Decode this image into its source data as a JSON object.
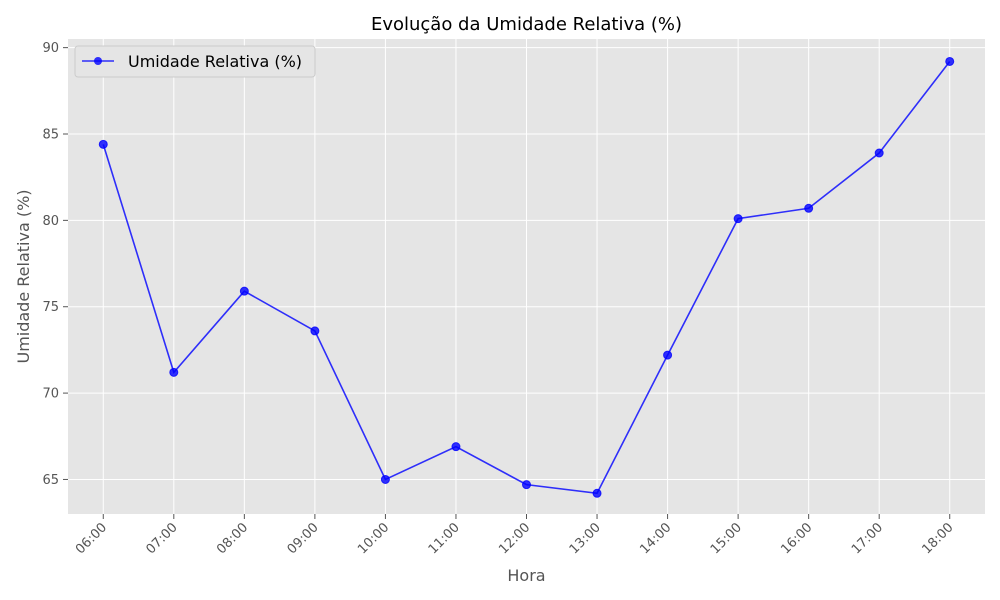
{
  "chart_data": {
    "type": "line",
    "title": "Evolução da Umidade Relativa (%)",
    "xlabel": "Hora",
    "ylabel": "Umidade Relativa (%)",
    "categories": [
      "06:00",
      "07:00",
      "08:00",
      "09:00",
      "10:00",
      "11:00",
      "12:00",
      "13:00",
      "14:00",
      "15:00",
      "16:00",
      "17:00",
      "18:00"
    ],
    "series": [
      {
        "name": "Umidade Relativa (%)",
        "values": [
          84.4,
          71.2,
          75.9,
          73.6,
          65.0,
          66.9,
          64.7,
          64.2,
          72.2,
          80.1,
          80.7,
          83.9,
          89.2
        ]
      }
    ],
    "yticks": [
      65,
      70,
      75,
      80,
      85,
      90
    ],
    "ylim": [
      63.0,
      90.5
    ],
    "grid": true,
    "legend_position": "top-left",
    "colors": {
      "line": "#0000ff",
      "plot_background": "#e5e5e5",
      "grid": "#ffffff",
      "tick_text": "#555555"
    }
  }
}
